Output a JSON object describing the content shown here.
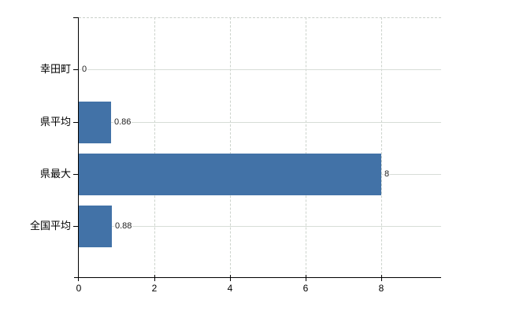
{
  "chart_data": {
    "type": "bar",
    "orientation": "horizontal",
    "title": "",
    "categories": [
      "幸田町",
      "県平均",
      "県最大",
      "全国平均"
    ],
    "values": [
      0,
      0.86,
      8,
      0.88
    ],
    "value_labels": [
      "0",
      "0.86",
      "8",
      "0.88"
    ],
    "x_ticks": [
      0,
      2,
      4,
      6,
      8
    ],
    "x_tick_labels": [
      "0",
      "2",
      "4",
      "6",
      "8"
    ],
    "xlim": [
      0,
      9.58
    ],
    "grid": "on",
    "legend": "none",
    "colors": {
      "bar": "#4272a7",
      "horizontal_gridline": "#d7ddd7",
      "vertical_gridline": "#ccd3cc",
      "axis": "#000000",
      "category_label": "#000000",
      "value_label": "#222222"
    }
  }
}
